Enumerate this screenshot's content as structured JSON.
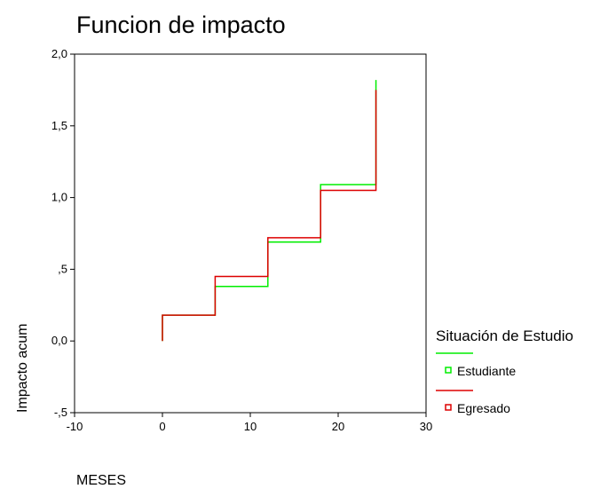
{
  "chart_data": {
    "type": "line",
    "step": true,
    "title": "Funcion de impacto",
    "xlabel": "MESES",
    "ylabel": "Impacto acum",
    "xlim": [
      -10,
      30
    ],
    "ylim": [
      -0.5,
      2.0
    ],
    "x_ticks": [
      -10,
      0,
      10,
      20,
      30
    ],
    "x_tick_labels": [
      "-10",
      "0",
      "10",
      "20",
      "30"
    ],
    "y_ticks": [
      -0.5,
      0.0,
      0.5,
      1.0,
      1.5,
      2.0
    ],
    "y_tick_labels": [
      "-,5",
      "0,0",
      ",5",
      "1,0",
      "1,5",
      "2,0"
    ],
    "grid": false,
    "legend": {
      "title": "Situación de Estudio",
      "position": "right"
    },
    "series": [
      {
        "name": "Estudiante",
        "color": "#00ee00",
        "x": [
          0,
          0,
          6,
          12,
          18,
          24.3,
          24.3
        ],
        "y": [
          0,
          0.18,
          0.38,
          0.69,
          1.09,
          1.09,
          1.82
        ]
      },
      {
        "name": "Egresado",
        "color": "#dd0000",
        "x": [
          0,
          0,
          6,
          12,
          18,
          24.3,
          24.3
        ],
        "y": [
          0,
          0.18,
          0.45,
          0.72,
          1.05,
          1.05,
          1.75
        ]
      }
    ]
  }
}
